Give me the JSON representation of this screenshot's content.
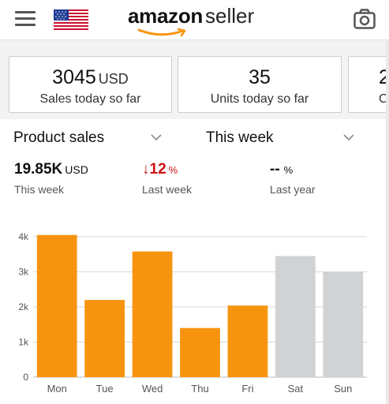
{
  "header": {
    "menu_icon": "hamburger-menu-icon",
    "flag_icon": "us-flag-icon",
    "logo_word": "amazon",
    "logo_suffix": "seller",
    "camera_icon": "camera-icon"
  },
  "summary": {
    "cards": [
      {
        "value": "3045",
        "unit": "USD",
        "label": "Sales today so far"
      },
      {
        "value": "35",
        "unit": "",
        "label": "Units today so far"
      },
      {
        "value": "2",
        "unit": "",
        "label": "C"
      }
    ]
  },
  "selectors": {
    "metric": "Product sales",
    "period": "This week"
  },
  "metrics": {
    "this_week": {
      "value": "19.85K",
      "unit": "USD",
      "label": "This week"
    },
    "last_week": {
      "arrow": "↓",
      "value": "12",
      "unit": "%",
      "label": "Last week"
    },
    "last_year": {
      "value": "--",
      "unit": "%",
      "label": "Last year"
    }
  },
  "colors": {
    "current": "#f7940f",
    "future": "#d1d2d3",
    "decline": "#cc1111"
  },
  "chart_data": {
    "type": "bar",
    "categories": [
      "Mon",
      "Tue",
      "Wed",
      "Thu",
      "Fri",
      "Sat",
      "Sun"
    ],
    "values": [
      4050,
      2200,
      3580,
      1400,
      2040,
      3450,
      3000
    ],
    "y_ticks": [
      "0",
      "1k",
      "2k",
      "3k",
      "4k"
    ],
    "ylim": [
      0,
      4000
    ],
    "highlight": [
      true,
      true,
      true,
      true,
      true,
      false,
      false
    ],
    "grid": true
  }
}
